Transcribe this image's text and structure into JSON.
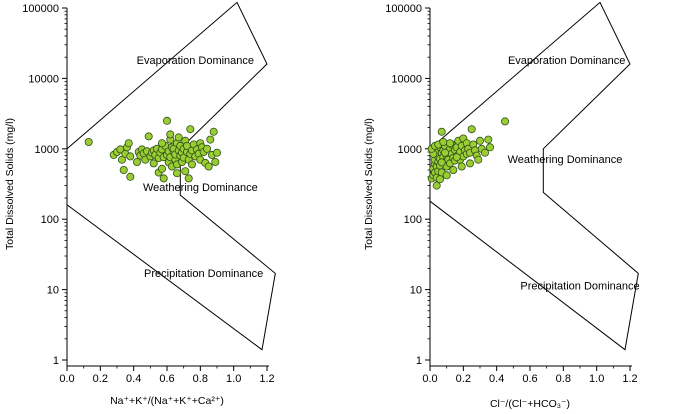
{
  "colors": {
    "point_fill": "#9acd32",
    "point_stroke": "#2f4f1a",
    "line": "#000000",
    "background": "#ffffff"
  },
  "chart_data": [
    {
      "type": "scatter",
      "title": "",
      "xlabel": "Na⁺+K⁺/(Na⁺+K⁺+Ca²⁺)",
      "ylabel": "Total Dissolved Solids (mg/l)",
      "xlim": [
        0,
        1.2
      ],
      "ylim": [
        1,
        100000
      ],
      "yscale": "log",
      "x_ticks": [
        "0.0",
        "0.2",
        "0.4",
        "0.6",
        "0.8",
        "1.0",
        "1.2"
      ],
      "y_ticks": [
        "1",
        "10",
        "100",
        "1000",
        "10000",
        "100000"
      ],
      "regions": [
        {
          "label": "Evaporation Dominance",
          "x": 0.77,
          "y": 16000
        },
        {
          "label": "Weathering Dominance",
          "x": 0.8,
          "y": 250
        },
        {
          "label": "Precipitation Dominance",
          "x": 0.82,
          "y": 15
        }
      ],
      "boundary": [
        [
          0.0,
          1000
        ],
        [
          1.02,
          120000
        ],
        [
          1.2,
          16000
        ],
        [
          0.68,
          1000
        ],
        [
          0.68,
          220
        ],
        [
          1.25,
          17
        ],
        [
          1.17,
          1.4
        ],
        [
          0.0,
          160
        ]
      ],
      "points": [
        [
          0.13,
          1250
        ],
        [
          0.28,
          820
        ],
        [
          0.3,
          900
        ],
        [
          0.32,
          980
        ],
        [
          0.33,
          700
        ],
        [
          0.34,
          500
        ],
        [
          0.35,
          850
        ],
        [
          0.36,
          1050
        ],
        [
          0.37,
          1200
        ],
        [
          0.38,
          780
        ],
        [
          0.38,
          400
        ],
        [
          0.42,
          650
        ],
        [
          0.43,
          900
        ],
        [
          0.44,
          800
        ],
        [
          0.45,
          980
        ],
        [
          0.46,
          860
        ],
        [
          0.47,
          700
        ],
        [
          0.48,
          920
        ],
        [
          0.49,
          1500
        ],
        [
          0.5,
          780
        ],
        [
          0.51,
          880
        ],
        [
          0.52,
          950
        ],
        [
          0.52,
          620
        ],
        [
          0.53,
          820
        ],
        [
          0.54,
          1000
        ],
        [
          0.55,
          460
        ],
        [
          0.55,
          740
        ],
        [
          0.56,
          880
        ],
        [
          0.57,
          520
        ],
        [
          0.57,
          980
        ],
        [
          0.58,
          380
        ],
        [
          0.58,
          760
        ],
        [
          0.59,
          1100
        ],
        [
          0.6,
          820
        ],
        [
          0.6,
          2500
        ],
        [
          0.61,
          640
        ],
        [
          0.61,
          920
        ],
        [
          0.62,
          1350
        ],
        [
          0.62,
          760
        ],
        [
          0.63,
          1050
        ],
        [
          0.63,
          560
        ],
        [
          0.64,
          900
        ],
        [
          0.64,
          1000
        ],
        [
          0.65,
          700
        ],
        [
          0.65,
          830
        ],
        [
          0.66,
          1200
        ],
        [
          0.66,
          600
        ],
        [
          0.67,
          950
        ],
        [
          0.67,
          1450
        ],
        [
          0.68,
          800
        ],
        [
          0.68,
          1100
        ],
        [
          0.69,
          880
        ],
        [
          0.69,
          650
        ],
        [
          0.7,
          1000
        ],
        [
          0.7,
          750
        ],
        [
          0.71,
          1300
        ],
        [
          0.71,
          480
        ],
        [
          0.72,
          900
        ],
        [
          0.72,
          1100
        ],
        [
          0.73,
          700
        ],
        [
          0.73,
          380
        ],
        [
          0.74,
          1900
        ],
        [
          0.74,
          850
        ],
        [
          0.75,
          950
        ],
        [
          0.75,
          600
        ],
        [
          0.76,
          1150
        ],
        [
          0.77,
          780
        ],
        [
          0.78,
          980
        ],
        [
          0.79,
          850
        ],
        [
          0.8,
          1200
        ],
        [
          0.8,
          700
        ],
        [
          0.81,
          1050
        ],
        [
          0.82,
          900
        ],
        [
          0.83,
          630
        ],
        [
          0.84,
          1000
        ],
        [
          0.85,
          560
        ],
        [
          0.86,
          1350
        ],
        [
          0.87,
          820
        ],
        [
          0.88,
          1750
        ],
        [
          0.89,
          650
        ],
        [
          0.9,
          880
        ],
        [
          0.62,
          1600
        ],
        [
          0.57,
          1200
        ],
        [
          0.66,
          450
        ]
      ]
    },
    {
      "type": "scatter",
      "title": "",
      "xlabel": "Cl⁻/(Cl⁻+HCO₃⁻)",
      "ylabel": "Total Dissolved Solids (mg/l)",
      "xlim": [
        0,
        1.2
      ],
      "ylim": [
        1,
        100000
      ],
      "yscale": "log",
      "x_ticks": [
        "0.0",
        "0.2",
        "0.4",
        "0.6",
        "0.8",
        "1.0",
        "1.2"
      ],
      "y_ticks": [
        "1",
        "10",
        "100",
        "1000",
        "10000",
        "100000"
      ],
      "regions": [
        {
          "label": "Evaporation Dominance",
          "x": 0.82,
          "y": 16000
        },
        {
          "label": "Weathering Dominance",
          "x": 0.81,
          "y": 630
        },
        {
          "label": "Precipitation Dominance",
          "x": 0.9,
          "y": 10
        }
      ],
      "boundary": [
        [
          0.0,
          1000
        ],
        [
          1.02,
          120000
        ],
        [
          1.2,
          16000
        ],
        [
          0.68,
          1000
        ],
        [
          0.68,
          240
        ],
        [
          1.25,
          17
        ],
        [
          1.17,
          1.4
        ],
        [
          0.0,
          180
        ]
      ],
      "points": [
        [
          0.01,
          380
        ],
        [
          0.02,
          420
        ],
        [
          0.02,
          520
        ],
        [
          0.03,
          610
        ],
        [
          0.03,
          700
        ],
        [
          0.03,
          460
        ],
        [
          0.04,
          820
        ],
        [
          0.04,
          560
        ],
        [
          0.04,
          390
        ],
        [
          0.05,
          950
        ],
        [
          0.05,
          650
        ],
        [
          0.05,
          480
        ],
        [
          0.06,
          1050
        ],
        [
          0.06,
          720
        ],
        [
          0.06,
          580
        ],
        [
          0.07,
          880
        ],
        [
          0.07,
          1750
        ],
        [
          0.07,
          460
        ],
        [
          0.08,
          760
        ],
        [
          0.08,
          950
        ],
        [
          0.09,
          640
        ],
        [
          0.09,
          1100
        ],
        [
          0.1,
          800
        ],
        [
          0.1,
          560
        ],
        [
          0.11,
          920
        ],
        [
          0.11,
          700
        ],
        [
          0.12,
          1000
        ],
        [
          0.12,
          620
        ],
        [
          0.13,
          850
        ],
        [
          0.13,
          1150
        ],
        [
          0.14,
          740
        ],
        [
          0.15,
          960
        ],
        [
          0.15,
          680
        ],
        [
          0.16,
          1050
        ],
        [
          0.17,
          820
        ],
        [
          0.17,
          1300
        ],
        [
          0.18,
          900
        ],
        [
          0.18,
          700
        ],
        [
          0.19,
          1100
        ],
        [
          0.2,
          780
        ],
        [
          0.2,
          1400
        ],
        [
          0.21,
          950
        ],
        [
          0.22,
          850
        ],
        [
          0.22,
          1200
        ],
        [
          0.23,
          1000
        ],
        [
          0.24,
          880
        ],
        [
          0.25,
          1900
        ],
        [
          0.26,
          1150
        ],
        [
          0.27,
          950
        ],
        [
          0.28,
          800
        ],
        [
          0.3,
          1300
        ],
        [
          0.31,
          1000
        ],
        [
          0.33,
          880
        ],
        [
          0.35,
          1350
        ],
        [
          0.36,
          1050
        ],
        [
          0.45,
          2450
        ],
        [
          0.02,
          850
        ],
        [
          0.01,
          1000
        ],
        [
          0.03,
          1100
        ],
        [
          0.05,
          1150
        ],
        [
          0.08,
          1250
        ],
        [
          0.04,
          300
        ],
        [
          0.06,
          370
        ],
        [
          0.1,
          420
        ],
        [
          0.14,
          500
        ],
        [
          0.19,
          560
        ],
        [
          0.24,
          620
        ],
        [
          0.29,
          700
        ],
        [
          0.09,
          880
        ],
        [
          0.16,
          760
        ],
        [
          0.12,
          1200
        ],
        [
          0.07,
          640
        ]
      ]
    }
  ]
}
